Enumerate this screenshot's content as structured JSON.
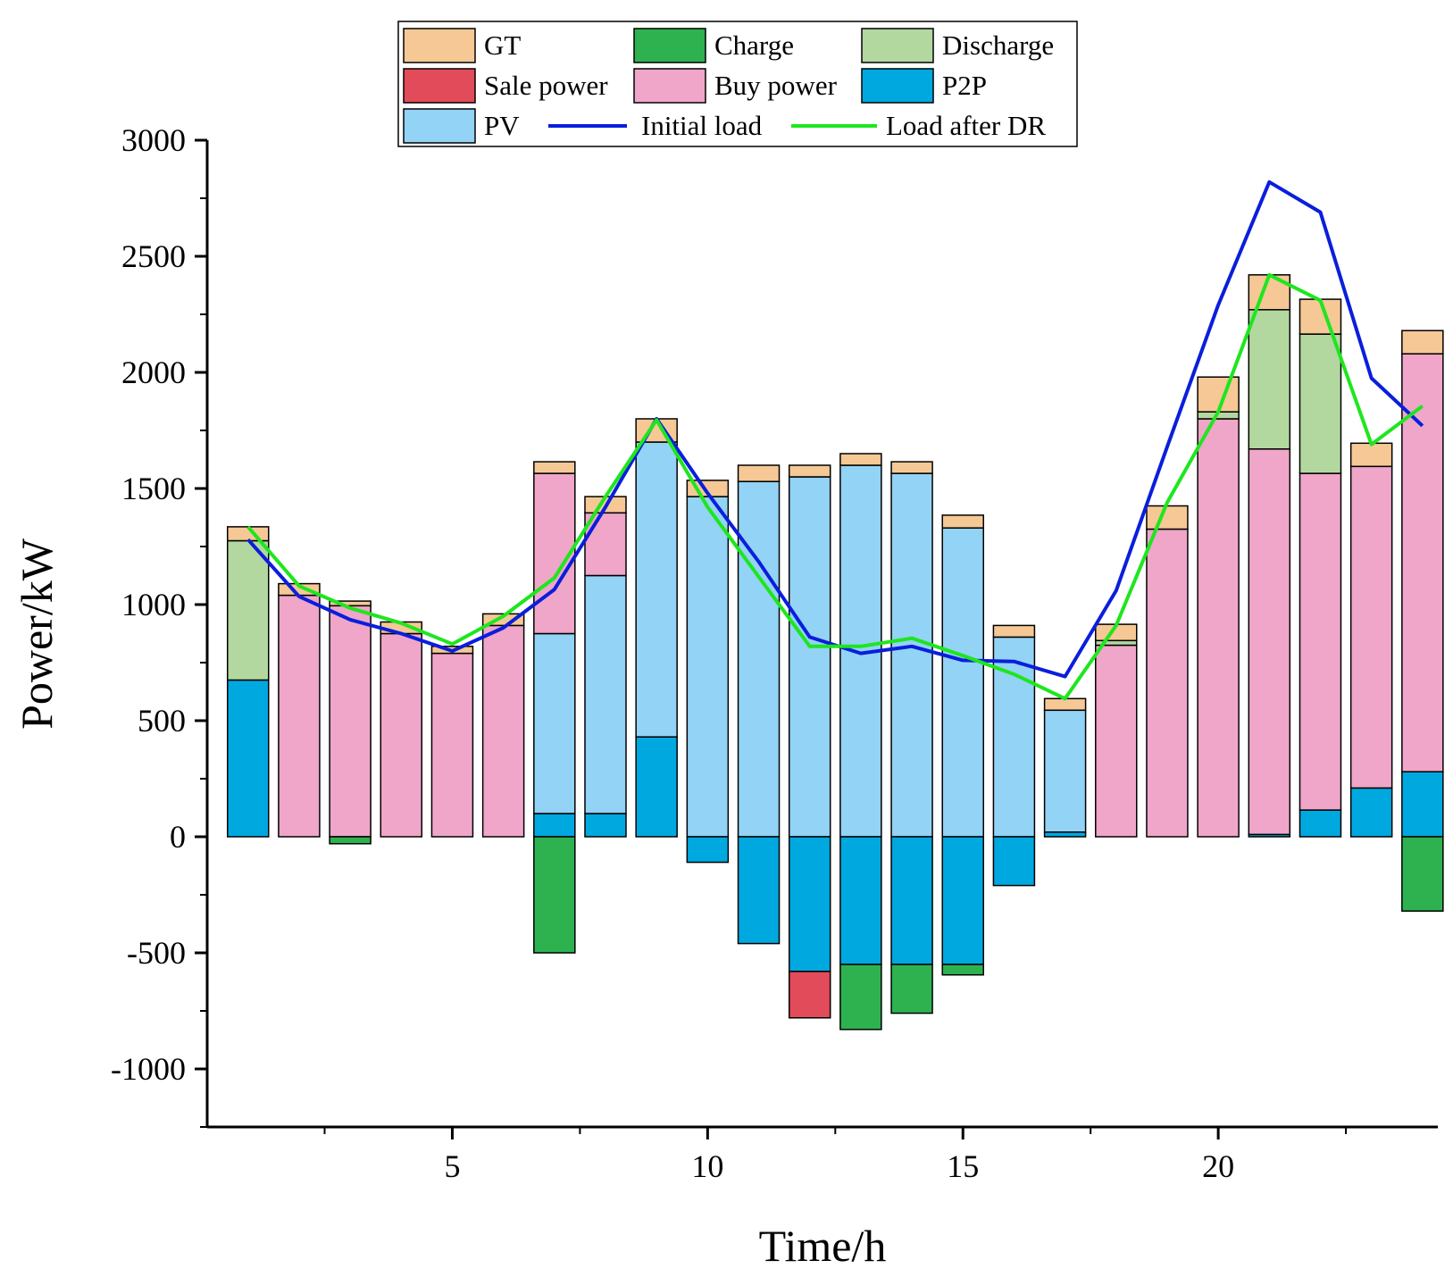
{
  "chart_data": {
    "type": "bar",
    "subtype": "stacked-bar-with-lines",
    "title": "",
    "xlabel": "Time/h",
    "ylabel": "Power/kW",
    "xlim": [
      0.2,
      24.3
    ],
    "ylim": [
      -1250,
      3000
    ],
    "x_ticks": [
      5,
      10,
      15,
      20
    ],
    "y_ticks": [
      -1000,
      -500,
      0,
      500,
      1000,
      1500,
      2000,
      2500,
      3000
    ],
    "grid": false,
    "legend_position": "top",
    "hours": [
      1,
      2,
      3,
      4,
      5,
      6,
      7,
      8,
      9,
      10,
      11,
      12,
      13,
      14,
      15,
      16,
      17,
      18,
      19,
      20,
      21,
      22,
      23,
      24
    ],
    "stack_order_positive": [
      "P2P",
      "PV",
      "Buy power",
      "Discharge",
      "GT"
    ],
    "stack_order_negative": [
      "P2P",
      "Charge",
      "Sale power"
    ],
    "series": [
      {
        "name": "P2P",
        "color": "#00A8E0",
        "values": [
          675,
          0,
          0,
          0,
          0,
          0,
          100,
          100,
          430,
          -110,
          -460,
          -580,
          -550,
          -550,
          -550,
          -210,
          20,
          0,
          0,
          0,
          10,
          115,
          210,
          280
        ]
      },
      {
        "name": "PV",
        "color": "#93D3F5",
        "values": [
          0,
          0,
          0,
          0,
          0,
          0,
          775,
          1025,
          1270,
          1465,
          1530,
          1550,
          1600,
          1565,
          1330,
          860,
          525,
          0,
          0,
          0,
          0,
          0,
          0,
          0
        ]
      },
      {
        "name": "Buy power",
        "color": "#EFA6C8",
        "values": [
          0,
          1040,
          995,
          875,
          790,
          910,
          690,
          270,
          0,
          0,
          0,
          0,
          0,
          0,
          0,
          0,
          0,
          825,
          1325,
          1800,
          1660,
          1450,
          1385,
          1800
        ]
      },
      {
        "name": "Discharge",
        "color": "#B2D8A0",
        "values": [
          600,
          0,
          0,
          0,
          0,
          0,
          0,
          0,
          0,
          0,
          0,
          0,
          0,
          0,
          0,
          0,
          0,
          20,
          0,
          30,
          600,
          600,
          0,
          0
        ]
      },
      {
        "name": "GT",
        "color": "#F5C895",
        "values": [
          60,
          50,
          20,
          50,
          30,
          50,
          50,
          70,
          100,
          70,
          70,
          50,
          50,
          50,
          55,
          50,
          50,
          70,
          100,
          150,
          150,
          150,
          100,
          100
        ]
      },
      {
        "name": "Charge",
        "color": "#2DB24F",
        "values": [
          0,
          0,
          -30,
          0,
          0,
          0,
          -500,
          0,
          0,
          0,
          0,
          0,
          -280,
          -210,
          -45,
          0,
          0,
          0,
          0,
          0,
          0,
          0,
          0,
          -320
        ]
      },
      {
        "name": "Sale power",
        "color": "#E14B5A",
        "values": [
          0,
          0,
          0,
          0,
          0,
          0,
          0,
          0,
          0,
          0,
          0,
          -200,
          0,
          0,
          0,
          0,
          0,
          0,
          0,
          0,
          0,
          0,
          0,
          0
        ]
      }
    ],
    "lines": [
      {
        "name": "Initial load",
        "color": "#0A1EDC",
        "values": [
          1280,
          1035,
          935,
          875,
          800,
          900,
          1065,
          1420,
          1800,
          1480,
          1185,
          860,
          790,
          820,
          760,
          755,
          690,
          1060,
          1680,
          2290,
          2820,
          2690,
          1975,
          1770
        ]
      },
      {
        "name": "Load after DR",
        "color": "#1EE61E",
        "values": [
          1335,
          1080,
          985,
          920,
          830,
          950,
          1115,
          1465,
          1795,
          1420,
          1120,
          820,
          820,
          855,
          780,
          700,
          595,
          910,
          1440,
          1830,
          2420,
          2310,
          1690,
          1855
        ]
      }
    ],
    "legend": [
      "GT",
      "Charge",
      "Discharge",
      "Sale power",
      "Buy power",
      "P2P",
      "PV",
      "Initial load",
      "Load after DR"
    ]
  }
}
